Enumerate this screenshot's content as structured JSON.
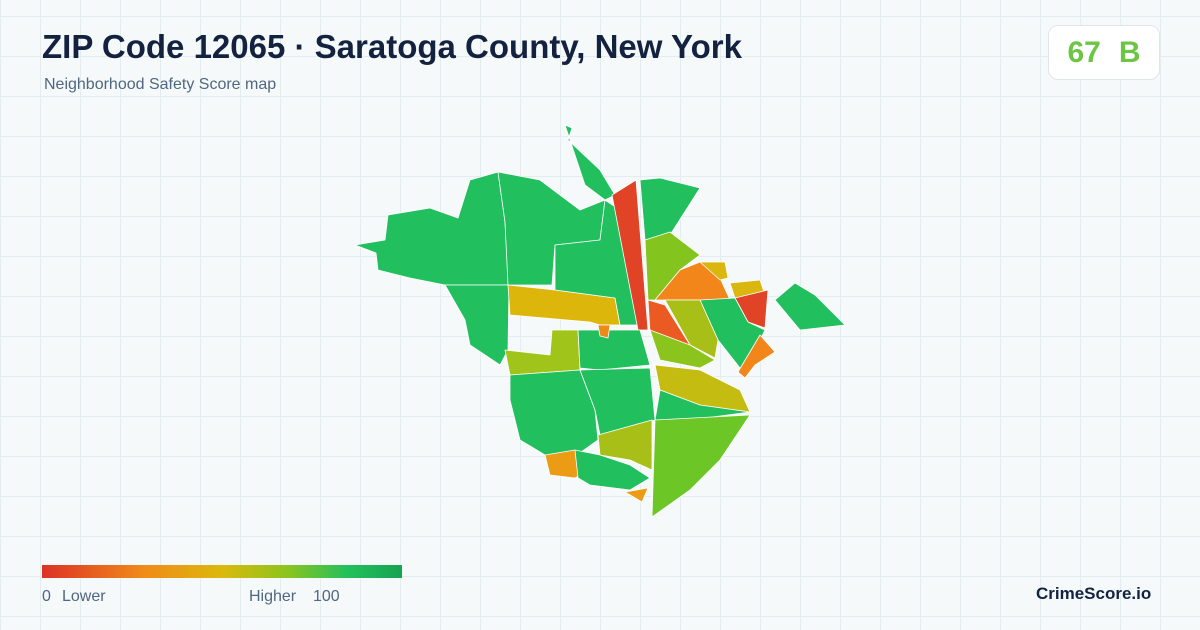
{
  "header": {
    "title": "ZIP Code 12065 · Saratoga County, New York",
    "subtitle": "Neighborhood Safety Score map"
  },
  "score": {
    "value": 67,
    "grade": "B"
  },
  "legend": {
    "min": 0,
    "min_label": "Lower",
    "max_label": "Higher",
    "max": 100
  },
  "brand": "CrimeScore.io"
}
